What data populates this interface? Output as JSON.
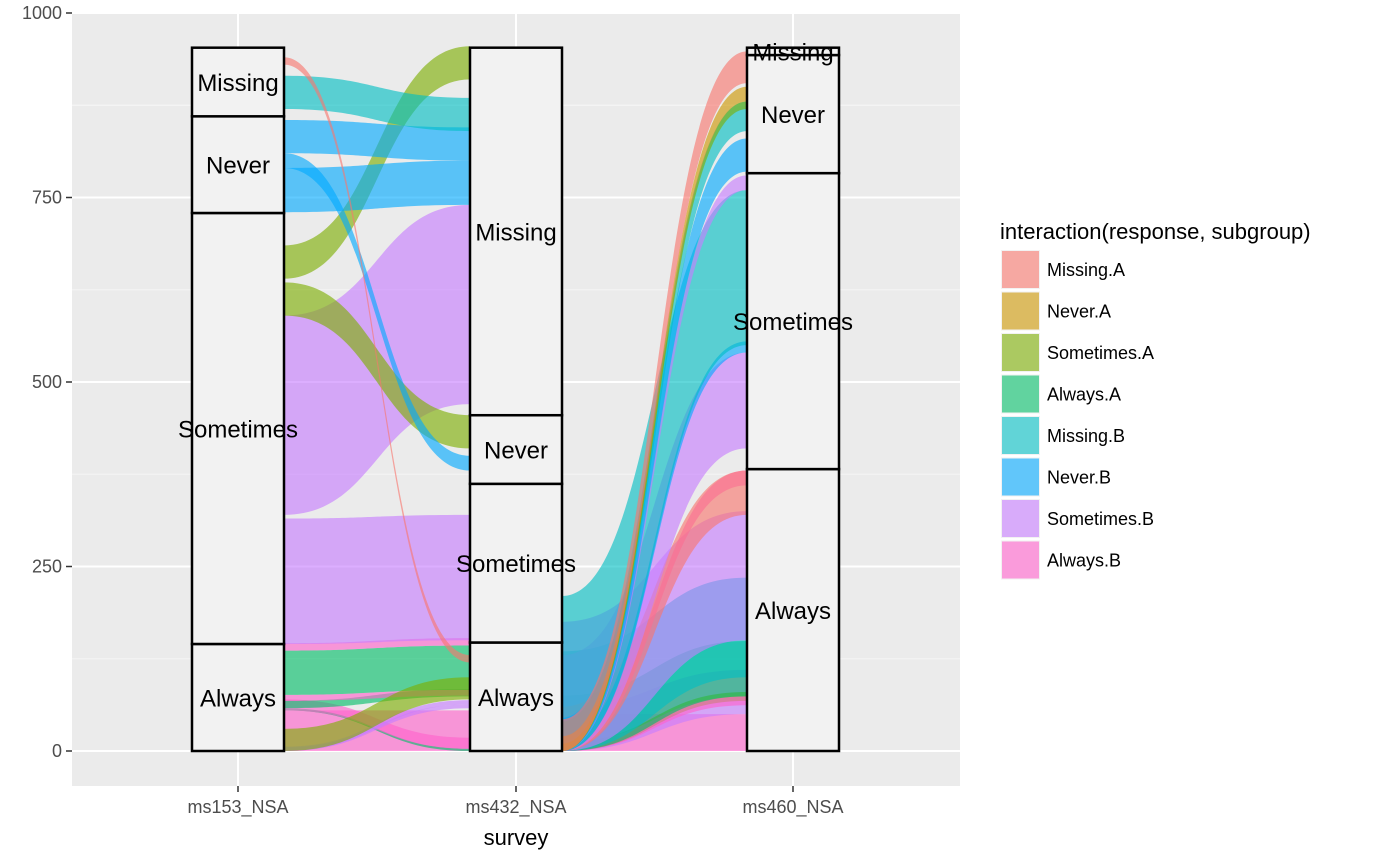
{
  "chart_data": {
    "type": "alluvial",
    "xlabel": "survey",
    "ylabel": "",
    "ylim": [
      0,
      1000
    ],
    "yticks": [
      0,
      250,
      500,
      750,
      1000
    ],
    "axes": [
      "ms153_NSA",
      "ms432_NSA",
      "ms460_NSA"
    ],
    "legend": {
      "title": "interaction(response, subgroup)",
      "position": "right",
      "entries": [
        {
          "key": "Missing.A",
          "label": "Missing.A",
          "color": "#F8766D"
        },
        {
          "key": "Never.A",
          "label": "Never.A",
          "color": "#CD9600"
        },
        {
          "key": "Sometimes.A",
          "label": "Sometimes.A",
          "color": "#7CAE00"
        },
        {
          "key": "Always.A",
          "label": "Always.A",
          "color": "#00BE67"
        },
        {
          "key": "Missing.B",
          "label": "Missing.B",
          "color": "#00BFC4"
        },
        {
          "key": "Never.B",
          "label": "Never.B",
          "color": "#00A9FF"
        },
        {
          "key": "Sometimes.B",
          "label": "Sometimes.B",
          "color": "#C77CFF"
        },
        {
          "key": "Always.B",
          "label": "Always.B",
          "color": "#FF61CC"
        }
      ]
    },
    "strata": [
      [
        {
          "label": "Always",
          "low": 0,
          "high": 145
        },
        {
          "label": "Sometimes",
          "low": 145,
          "high": 729
        },
        {
          "label": "Never",
          "low": 729,
          "high": 860
        },
        {
          "label": "Missing",
          "low": 860,
          "high": 953
        }
      ],
      [
        {
          "label": "Always",
          "low": 0,
          "high": 147
        },
        {
          "label": "Sometimes",
          "low": 147,
          "high": 362
        },
        {
          "label": "Never",
          "low": 362,
          "high": 455
        },
        {
          "label": "Missing",
          "low": 455,
          "high": 953
        }
      ],
      [
        {
          "label": "Always",
          "low": 0,
          "high": 382
        },
        {
          "label": "Sometimes",
          "low": 382,
          "high": 783
        },
        {
          "label": "Never",
          "low": 783,
          "high": 943
        },
        {
          "label": "Missing",
          "low": 943,
          "high": 953
        }
      ]
    ],
    "flows": [
      {
        "fill": "Always.B",
        "v": 55,
        "a": 0,
        "b": 0,
        "c": 0
      },
      {
        "fill": "Always.A",
        "v": 3,
        "a": 55,
        "b": 0,
        "c": 0
      },
      {
        "fill": "Always.B",
        "v": 15,
        "a": 55,
        "b": 3,
        "c": 0
      },
      {
        "fill": "Always.A",
        "v": 10,
        "a": 58,
        "b": 74,
        "c": 0
      },
      {
        "fill": "Always.B",
        "v": 8,
        "a": 68,
        "b": 75,
        "c": 0
      },
      {
        "fill": "Always.A",
        "v": 60,
        "a": 76,
        "b": 83,
        "c": 0
      },
      {
        "fill": "Always.B",
        "v": 10,
        "a": 136,
        "b": 143,
        "c": 0
      },
      {
        "fill": "Sometimes.B",
        "v": 5,
        "a": 0,
        "b": 58,
        "c": 0
      },
      {
        "fill": "Sometimes.B",
        "v": 6,
        "a": 0,
        "b": 63,
        "c": 0
      },
      {
        "fill": "Sometimes.A",
        "v": 30,
        "a": 0,
        "b": 70,
        "c": 0
      },
      {
        "fill": "Sometimes.B",
        "v": 170,
        "a": 145,
        "b": 150,
        "c": 0
      },
      {
        "fill": "Sometimes.B",
        "v": 270,
        "a": 320,
        "b": 470,
        "c": 0
      },
      {
        "fill": "Sometimes.A",
        "v": 45,
        "a": 590,
        "b": 410,
        "c": 0
      },
      {
        "fill": "Sometimes.A",
        "v": 45,
        "a": 640,
        "b": 910,
        "c": 0
      },
      {
        "fill": "Never.B",
        "v": 60,
        "a": 730,
        "b": 740,
        "c": 0
      },
      {
        "fill": "Never.B",
        "v": 20,
        "a": 790,
        "b": 380,
        "c": 0
      },
      {
        "fill": "Never.B",
        "v": 45,
        "a": 810,
        "b": 800,
        "c": 0
      },
      {
        "fill": "Missing.B",
        "v": 45,
        "a": 870,
        "b": 840,
        "c": 0
      },
      {
        "fill": "Missing.A",
        "v": 10,
        "a": 930,
        "b": 120,
        "c": 0
      },
      {
        "fill": "Always.B",
        "v": 50,
        "a": 0,
        "b": 0,
        "c": 1
      },
      {
        "fill": "Sometimes.B",
        "v": 60,
        "a": 0,
        "b": 50,
        "c": 1
      },
      {
        "fill": "Sometimes.A",
        "v": 12,
        "a": 0,
        "b": 68,
        "c": 1
      },
      {
        "fill": "Always.B",
        "v": 12,
        "a": 0,
        "b": 62,
        "c": 1
      },
      {
        "fill": "Always.A",
        "v": 75,
        "a": 0,
        "b": 74,
        "c": 1
      },
      {
        "fill": "Missing.B",
        "v": 135,
        "a": 0,
        "b": 100,
        "c": 1
      },
      {
        "fill": "Sometimes.B",
        "v": 175,
        "a": 0,
        "b": 150,
        "c": 1
      },
      {
        "fill": "Always.B",
        "v": 20,
        "a": 0,
        "b": 360,
        "c": 1
      },
      {
        "fill": "Missing.A",
        "v": 60,
        "a": 0,
        "b": 320,
        "c": 1
      },
      {
        "fill": "Sometimes.B",
        "v": 130,
        "a": 0,
        "b": 410,
        "c": 1
      },
      {
        "fill": "Never.B",
        "v": 15,
        "a": 0,
        "b": 540,
        "c": 1
      },
      {
        "fill": "Missing.B",
        "v": 210,
        "a": 0,
        "b": 550,
        "c": 1
      },
      {
        "fill": "Sometimes.B",
        "v": 20,
        "a": 0,
        "b": 760,
        "c": 1
      },
      {
        "fill": "Never.B",
        "v": 45,
        "a": 0,
        "b": 785,
        "c": 1
      },
      {
        "fill": "Missing.B",
        "v": 40,
        "a": 0,
        "b": 840,
        "c": 1
      },
      {
        "fill": "Sometimes.A",
        "v": 10,
        "a": 0,
        "b": 870,
        "c": 1
      },
      {
        "fill": "Never.A",
        "v": 20,
        "a": 0,
        "b": 880,
        "c": 1
      },
      {
        "fill": "Missing.A",
        "v": 43,
        "a": 0,
        "b": 905,
        "c": 1
      }
    ]
  }
}
